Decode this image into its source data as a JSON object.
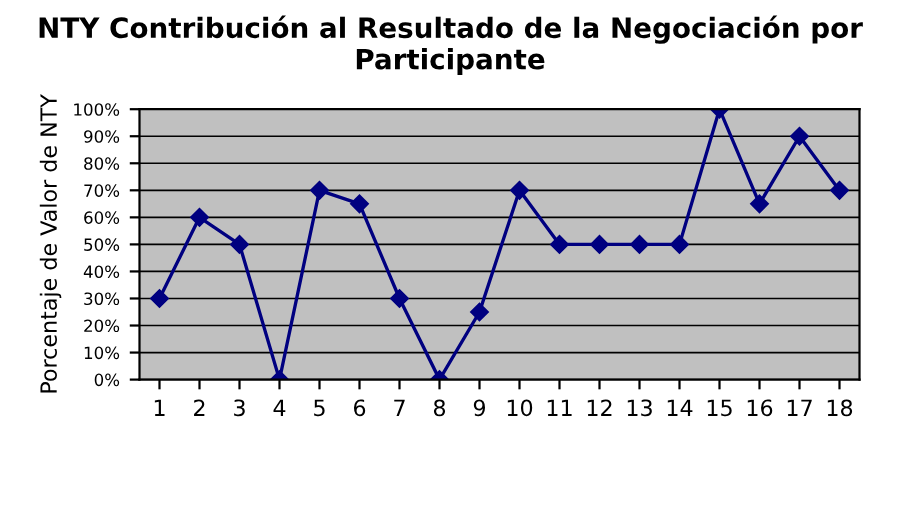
{
  "chart_data": {
    "type": "line",
    "title": "NTY Contribución al Resultado de la Negociación por Participante",
    "ylabel": "Porcentaje de Valor de NTY",
    "categories": [
      "1",
      "2",
      "3",
      "4",
      "5",
      "6",
      "7",
      "8",
      "9",
      "10",
      "11",
      "12",
      "13",
      "14",
      "15",
      "16",
      "17",
      "18"
    ],
    "series": [
      {
        "color": "#000080",
        "values": [
          30,
          60,
          50,
          0,
          70,
          65,
          30,
          0,
          25,
          70,
          50,
          50,
          50,
          50,
          100,
          65,
          90,
          70
        ]
      }
    ],
    "ylim": [
      0,
      100
    ],
    "yticks": [
      {
        "value": 0,
        "label": "0%"
      },
      {
        "value": 10,
        "label": "10%"
      },
      {
        "value": 20,
        "label": "20%"
      },
      {
        "value": 30,
        "label": "30%"
      },
      {
        "value": 40,
        "label": "40%"
      },
      {
        "value": 50,
        "label": "50%"
      },
      {
        "value": 60,
        "label": "60%"
      },
      {
        "value": 70,
        "label": "70%"
      },
      {
        "value": 80,
        "label": "80%"
      },
      {
        "value": 90,
        "label": "90%"
      },
      {
        "value": 100,
        "label": "100%"
      }
    ],
    "grid": "y",
    "marker": "diamond",
    "line_style": "solid"
  }
}
